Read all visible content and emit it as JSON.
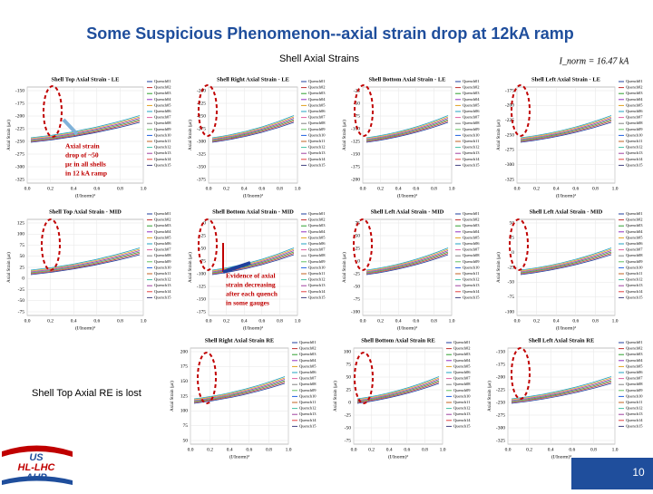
{
  "header": {
    "title": "Some Suspicious Phenomenon--axial strain drop at 12kA ramp",
    "subtitle": "Shell Axial Strains",
    "current": "I_norm = 16.47 kA"
  },
  "axis": {
    "x_label": "(I/Inorm)²",
    "y_label": "Axial Strain (με)",
    "xticks": [
      "0.0",
      "0.2",
      "0.4",
      "0.6",
      "0.8",
      "1.0"
    ]
  },
  "legend": [
    "Quench01",
    "Quench02",
    "Quench03",
    "Quench04",
    "Quench05",
    "Quench06",
    "Quench07",
    "Quench08",
    "Quench09",
    "Quench10",
    "Quench11",
    "Quench12",
    "Quench13",
    "Quench14",
    "Quench15"
  ],
  "panels": [
    {
      "title": "Shell Top Axial Strain - LE",
      "yticks": [
        "-150",
        "-175",
        "-200",
        "-225",
        "-250",
        "-275",
        "-300",
        "-325"
      ]
    },
    {
      "title": "Shell Right Axial Strain - LE",
      "yticks": [
        "-200",
        "-225",
        "-250",
        "-275",
        "-300",
        "-325",
        "-350",
        "-375"
      ]
    },
    {
      "title": "Shell Bottom Axial Strain - LE",
      "yticks": [
        "-25",
        "-50",
        "-75",
        "-100",
        "-125",
        "-150",
        "-175",
        "-200"
      ]
    },
    {
      "title": "Shell Left Axial Strain - LE",
      "yticks": [
        "-175",
        "-200",
        "-225",
        "-250",
        "-275",
        "-300",
        "-325"
      ]
    },
    {
      "title": "Shell Top Axial Strain - MID",
      "yticks": [
        "125",
        "100",
        "75",
        "50",
        "25",
        "0",
        "-25",
        "-50",
        "-75"
      ]
    },
    {
      "title": "Shell Bottom Axial Strain - MID",
      "yticks": [
        "0",
        "-25",
        "-50",
        "-75",
        "-100",
        "-125",
        "-150",
        "-175"
      ]
    },
    {
      "title": "Shell Left Axial Strain - MID",
      "yticks": [
        "75",
        "50",
        "25",
        "0",
        "-25",
        "-50",
        "-75",
        "-100"
      ]
    },
    {
      "title": "Shell Left Axial Strain - MID",
      "yticks": [
        "50",
        "25",
        "0",
        "-25",
        "-50",
        "-75",
        "-100"
      ]
    },
    {
      "title": "Shell Right Axial Strain RE",
      "yticks": [
        "200",
        "175",
        "150",
        "125",
        "100",
        "75",
        "50"
      ]
    },
    {
      "title": "Shell Bottom Axial Strain RE",
      "yticks": [
        "100",
        "75",
        "50",
        "25",
        "0",
        "-25",
        "-50",
        "-75"
      ]
    },
    {
      "title": "Shell Left Axial Strain RE",
      "yticks": [
        "-150",
        "-175",
        "-200",
        "-225",
        "-250",
        "-275",
        "-300",
        "-325"
      ]
    }
  ],
  "notes": {
    "drop": [
      "Axial strain",
      "drop of ~50",
      "με in all shells",
      "in 12 kA ramp"
    ],
    "evidence": [
      "Evidence of axial",
      "strain decreasing",
      "after each quench",
      "in some gauges"
    ],
    "lost": "Shell Top Axial RE is lost"
  },
  "logo": [
    "US",
    "HL-LHC",
    "AUP"
  ],
  "page_number": "10"
}
